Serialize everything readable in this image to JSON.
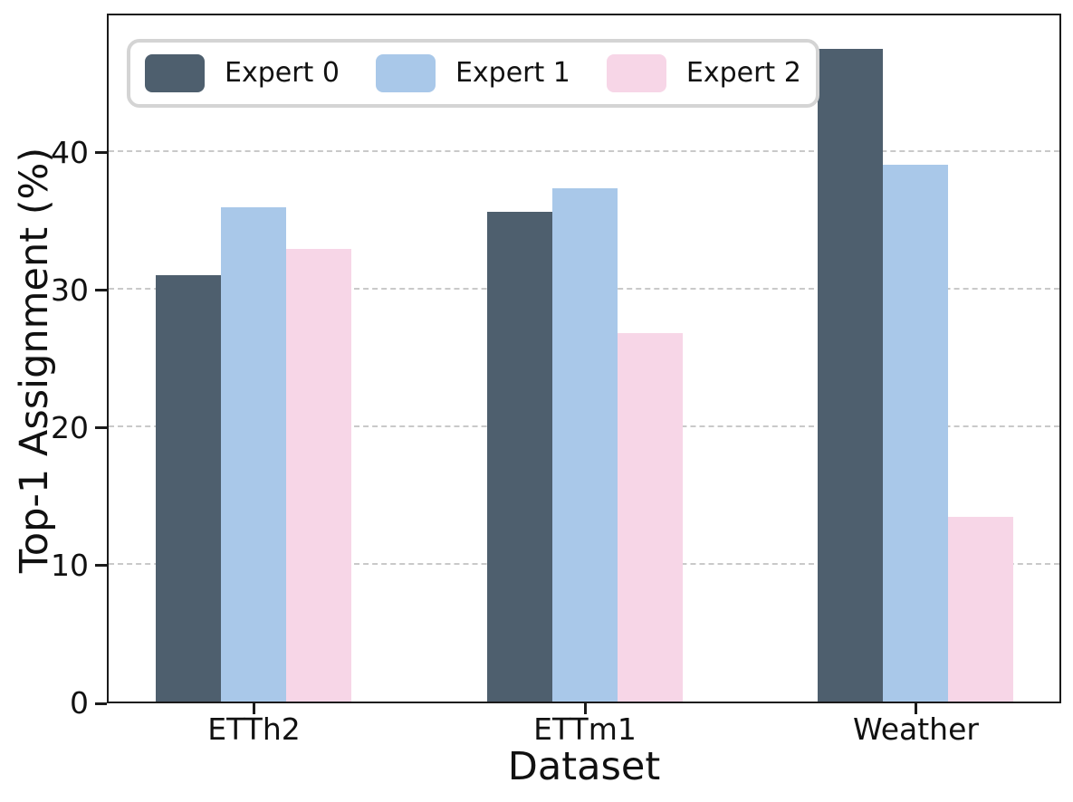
{
  "chart_data": {
    "type": "bar",
    "xlabel": "Dataset",
    "ylabel": "Top-1 Assignment (%)",
    "categories": [
      "ETTh2",
      "ETTm1",
      "Weather"
    ],
    "series": [
      {
        "name": "Expert 0",
        "color": "#4E5F6E",
        "values": [
          31.0,
          35.6,
          47.4
        ]
      },
      {
        "name": "Expert 1",
        "color": "#A9C8E9",
        "values": [
          35.9,
          37.3,
          39.0
        ]
      },
      {
        "name": "Expert 2",
        "color": "#F7D6E7",
        "values": [
          32.9,
          26.8,
          13.4
        ]
      }
    ],
    "yticks": [
      0,
      10,
      20,
      30,
      40
    ],
    "ylim": [
      0,
      49.8
    ],
    "grid": "horizontal-dashed",
    "legend_position": "upper-left",
    "colors": {
      "spine": "#1a1a1a",
      "gridline": "#c9c9c9",
      "legend_border": "#d4d4d4",
      "background": "#ffffff"
    }
  }
}
